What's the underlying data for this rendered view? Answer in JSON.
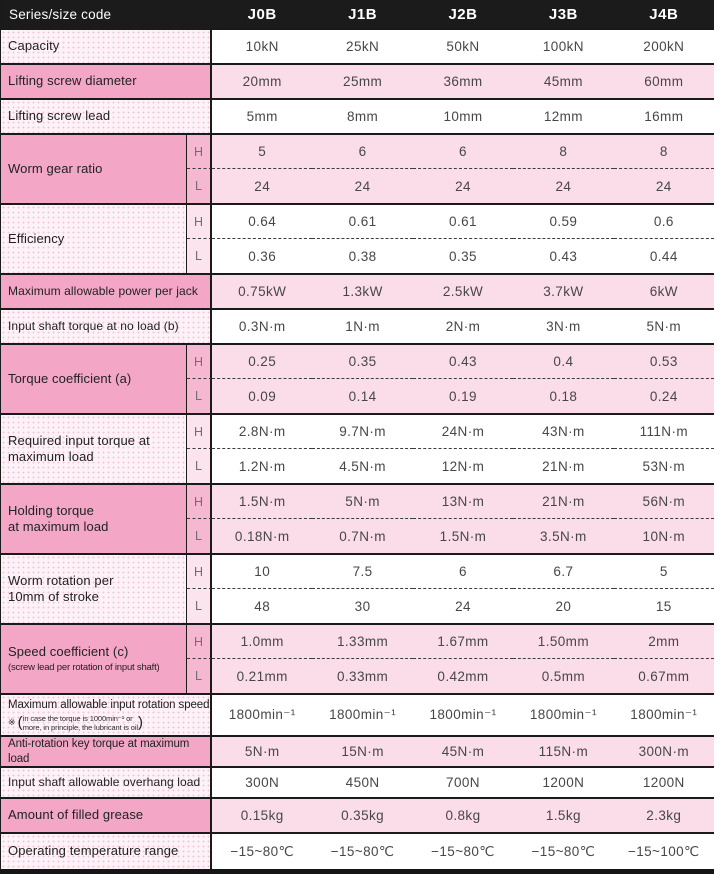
{
  "colors": {
    "header_bg": "#1b1b1b",
    "header_text": "#ffffff",
    "border": "#1a1a1a",
    "pink_dark": "#f3a6c5",
    "pink_mid": "#f6b8d1",
    "pink_light": "#fbdce9",
    "pink_pale": "#fdf2f7",
    "value_text": "#474747"
  },
  "hl": {
    "h": "H",
    "l": "L"
  },
  "header": {
    "label": "Series/size code",
    "columns": [
      "J0B",
      "J1B",
      "J2B",
      "J3B",
      "J4B"
    ]
  },
  "rows": {
    "capacity": {
      "label": "Capacity",
      "values": [
        "10kN",
        "25kN",
        "50kN",
        "100kN",
        "200kN"
      ]
    },
    "screw_diameter": {
      "label": "Lifting screw diameter",
      "values": [
        "20mm",
        "25mm",
        "36mm",
        "45mm",
        "60mm"
      ]
    },
    "screw_lead": {
      "label": "Lifting screw lead",
      "values": [
        "5mm",
        "8mm",
        "10mm",
        "12mm",
        "16mm"
      ]
    },
    "worm_gear_ratio": {
      "label": "Worm gear ratio",
      "h": [
        "5",
        "6",
        "6",
        "8",
        "8"
      ],
      "l": [
        "24",
        "24",
        "24",
        "24",
        "24"
      ]
    },
    "efficiency": {
      "label": "Efficiency",
      "h": [
        "0.64",
        "0.61",
        "0.61",
        "0.59",
        "0.6"
      ],
      "l": [
        "0.36",
        "0.38",
        "0.35",
        "0.43",
        "0.44"
      ]
    },
    "max_power": {
      "label": "Maximum allowable power per jack",
      "values": [
        "0.75kW",
        "1.3kW",
        "2.5kW",
        "3.7kW",
        "6kW"
      ]
    },
    "no_load_torque": {
      "label": "Input shaft torque at no load (b)",
      "values": [
        "0.3N·m",
        "1N·m",
        "2N·m",
        "3N·m",
        "5N·m"
      ]
    },
    "torque_coefficient": {
      "label": "Torque coefficient (a)",
      "h": [
        "0.25",
        "0.35",
        "0.43",
        "0.4",
        "0.53"
      ],
      "l": [
        "0.09",
        "0.14",
        "0.19",
        "0.18",
        "0.24"
      ]
    },
    "required_torque": {
      "label_line1": "Required input torque at",
      "label_line2": "maximum load",
      "h": [
        "2.8N·m",
        "9.7N·m",
        "24N·m",
        "43N·m",
        "111N·m"
      ],
      "l": [
        "1.2N·m",
        "4.5N·m",
        "12N·m",
        "21N·m",
        "53N·m"
      ]
    },
    "holding_torque": {
      "label_line1": "Holding torque",
      "label_line2": "at maximum load",
      "h": [
        "1.5N·m",
        "5N·m",
        "13N·m",
        "21N·m",
        "56N·m"
      ],
      "l": [
        "0.18N·m",
        "0.7N·m",
        "1.5N·m",
        "3.5N·m",
        "10N·m"
      ]
    },
    "worm_rotation": {
      "label_line1": "Worm rotation per",
      "label_line2": "10mm of stroke",
      "h": [
        "10",
        "7.5",
        "6",
        "6.7",
        "5"
      ],
      "l": [
        "48",
        "30",
        "24",
        "20",
        "15"
      ]
    },
    "speed_coefficient": {
      "label": "Speed coefficient (c)",
      "note": "(screw lead per rotation of input shaft)",
      "h": [
        "1.0mm",
        "1.33mm",
        "1.67mm",
        "1.50mm",
        "2mm"
      ],
      "l": [
        "0.21mm",
        "0.33mm",
        "0.42mm",
        "0.5mm",
        "0.67mm"
      ]
    },
    "max_rotation_speed": {
      "label": "Maximum allowable input rotation speed",
      "note_symbol": "※",
      "note_open": "(",
      "note_close": ")",
      "note_line1": "in case the torque is 1000min⁻¹ or",
      "note_line2": "more, in principle, the lubricant is oil",
      "values": [
        "1800min⁻¹",
        "1800min⁻¹",
        "1800min⁻¹",
        "1800min⁻¹",
        "1800min⁻¹"
      ]
    },
    "anti_rotation": {
      "label": "Anti-rotation key torque at maximum load",
      "values": [
        "5N·m",
        "15N·m",
        "45N·m",
        "115N·m",
        "300N·m"
      ]
    },
    "overhang_load": {
      "label": "Input shaft allowable overhang load",
      "values": [
        "300N",
        "450N",
        "700N",
        "1200N",
        "1200N"
      ]
    },
    "grease": {
      "label": "Amount of filled grease",
      "values": [
        "0.15kg",
        "0.35kg",
        "0.8kg",
        "1.5kg",
        "2.3kg"
      ]
    },
    "temperature": {
      "label": "Operating temperature range",
      "values": [
        "−15~80℃",
        "−15~80℃",
        "−15~80℃",
        "−15~80℃",
        "−15~100℃"
      ]
    }
  }
}
